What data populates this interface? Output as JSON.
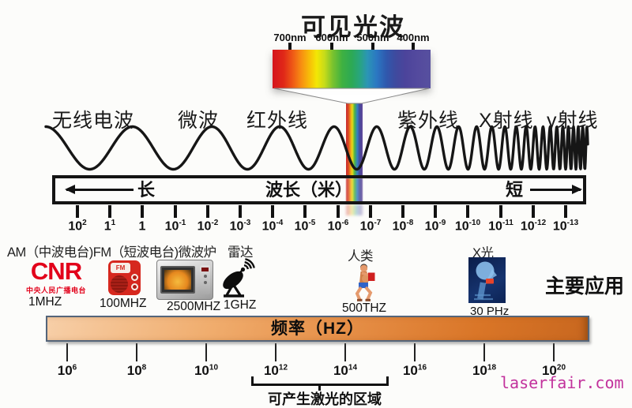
{
  "title": "可见光波",
  "visible_light": {
    "ticks": [
      "700nm",
      "600nm",
      "500nm",
      "400nm"
    ]
  },
  "bands": {
    "radio": "无线电波",
    "microwave": "微波",
    "infrared": "红外线",
    "ultraviolet": "紫外线",
    "xray": "X射线",
    "gamma": "γ射线"
  },
  "wavelength_axis": {
    "long_label": "长",
    "title": "波长（米）",
    "short_label": "短",
    "ticks": [
      [
        "10",
        "2"
      ],
      [
        "1",
        "1"
      ],
      [
        "1",
        ""
      ],
      [
        "10",
        "-1"
      ],
      [
        "10",
        "-2"
      ],
      [
        "10",
        "-3"
      ],
      [
        "10",
        "-4"
      ],
      [
        "10",
        "-5"
      ],
      [
        "10",
        "-6"
      ],
      [
        "10",
        "-7"
      ],
      [
        "10",
        "-8"
      ],
      [
        "10",
        "-9"
      ],
      [
        "10",
        "-10"
      ],
      [
        "10",
        "-11"
      ],
      [
        "10",
        "-12"
      ],
      [
        "10",
        "-13"
      ]
    ]
  },
  "applications": {
    "caption_line": "AM（中波电台)FM（短波电台)微波炉",
    "radar_caption": "雷达",
    "human_caption": "人类",
    "xray_caption": "X光",
    "heading": "主要应用",
    "cnr": {
      "logo": "CNR",
      "sub": "中央人民广播电台",
      "freq": "1MHZ"
    },
    "fm": {
      "logo": "FM",
      "freq": "100MHZ"
    },
    "microwave": {
      "freq": "2500MHZ"
    },
    "radar": {
      "freq": "1GHZ"
    },
    "human": {
      "freq": "500THZ"
    },
    "xray": {
      "freq": "30 PHz"
    }
  },
  "frequency_axis": {
    "title": "频率（HZ）",
    "ticks": [
      [
        "10",
        "6"
      ],
      [
        "10",
        "8"
      ],
      [
        "10",
        "10"
      ],
      [
        "10",
        "12"
      ],
      [
        "10",
        "14"
      ],
      [
        "10",
        "16"
      ],
      [
        "10",
        "18"
      ],
      [
        "10",
        "20"
      ]
    ],
    "laser_region_label": "可产生激光的区域"
  },
  "watermark": "laserfair.com",
  "colors": {
    "cnr_red": "#e2001a",
    "fm_radio_red": "#d6281e",
    "frequency_bar_orange": "#e68f47",
    "xray_blue": "#16336e",
    "watermark_pink": "#c2319c",
    "spectrum_left_red": "#d5151d",
    "spectrum_right_violet": "#57509f"
  }
}
